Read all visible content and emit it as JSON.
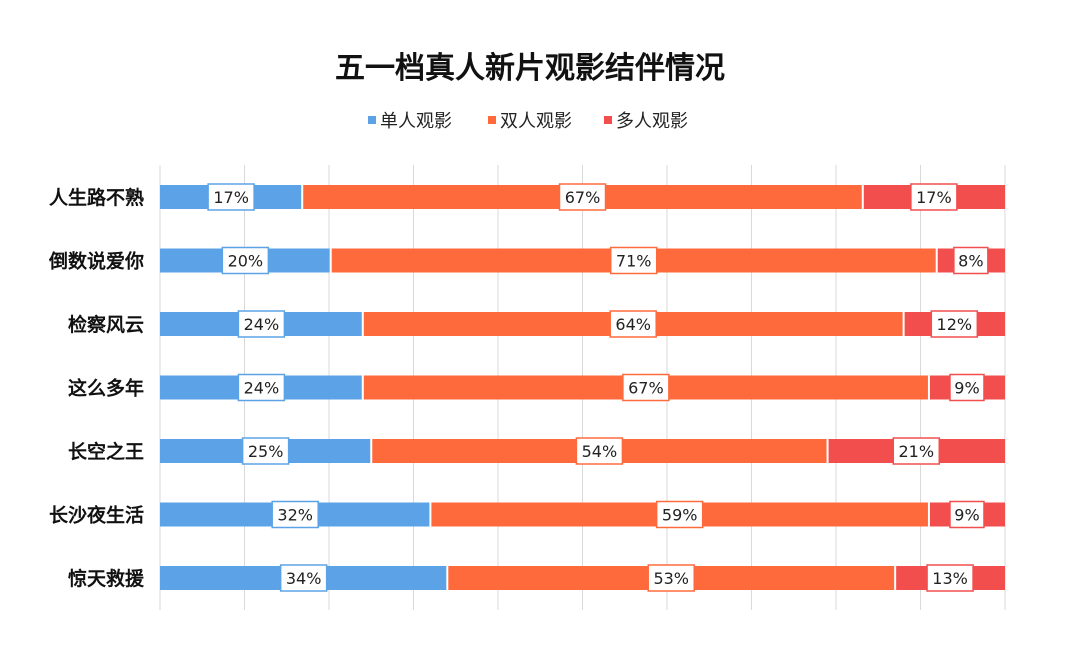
{
  "chart_data": {
    "type": "bar",
    "orientation": "horizontal",
    "stacked": true,
    "percent_stacked": true,
    "title": "五一档真人新片观影结伴情况",
    "legend_position": "top",
    "grid": true,
    "xlim": [
      0,
      100
    ],
    "categories": [
      "人生路不熟",
      "倒数说爱你",
      "检察风云",
      "这么多年",
      "长空之王",
      "长沙夜生活",
      "惊天救援"
    ],
    "series": [
      {
        "name": "单人观影",
        "color": "#5ba3e6",
        "values": [
          17,
          20,
          24,
          24,
          25,
          32,
          34
        ],
        "labels": [
          "17%",
          "20%",
          "24%",
          "24%",
          "25%",
          "32%",
          "34%"
        ]
      },
      {
        "name": "双人观影",
        "color": "#ff6a3d",
        "values": [
          67,
          71,
          64,
          67,
          54,
          59,
          53
        ],
        "labels": [
          "67%",
          "71%",
          "64%",
          "67%",
          "54%",
          "59%",
          "53%"
        ]
      },
      {
        "name": "多人观影",
        "color": "#f24e4e",
        "values": [
          17,
          8,
          12,
          9,
          21,
          9,
          13
        ],
        "labels": [
          "17%",
          "8%",
          "12%",
          "9%",
          "21%",
          "9%",
          "13%"
        ]
      }
    ]
  }
}
